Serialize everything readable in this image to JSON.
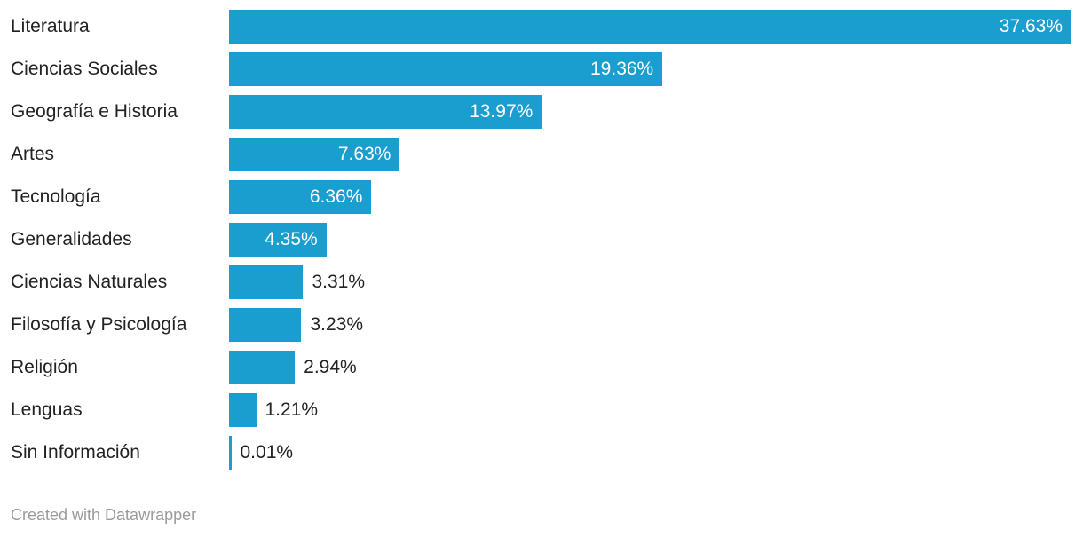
{
  "chart_data": {
    "type": "bar",
    "orientation": "horizontal",
    "title": "",
    "xlabel": "",
    "ylabel": "",
    "grid": false,
    "legend": "none",
    "xlim": [
      0,
      37.63
    ],
    "categories": [
      "Literatura",
      "Ciencias Sociales",
      "Geografía e Historia",
      "Artes",
      "Tecnología",
      "Generalidades",
      "Ciencias Naturales",
      "Filosofía y Psicología",
      "Religión",
      "Lenguas",
      "Sin Información"
    ],
    "values": [
      37.63,
      19.36,
      13.97,
      7.63,
      6.36,
      4.35,
      3.31,
      3.23,
      2.94,
      1.21,
      0.01
    ],
    "value_labels": [
      "37.63%",
      "19.36%",
      "13.97%",
      "7.63%",
      "6.36%",
      "4.35%",
      "3.31%",
      "3.23%",
      "2.94%",
      "1.21%",
      "0.01%"
    ],
    "unit": "%",
    "bar_color": "#1a9dcf",
    "inside_label_color": "#ffffff",
    "outside_label_color": "#222222",
    "category_label_color": "#222222"
  },
  "footer": {
    "text": "Created with Datawrapper",
    "color": "#9b9b9b"
  }
}
